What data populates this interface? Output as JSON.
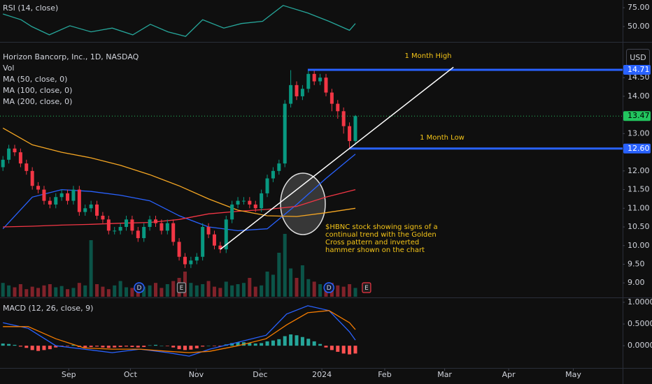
{
  "chart_data": [
    {
      "type": "line",
      "title": "RSI (14, close)",
      "xlim": [
        -0.5,
        105.5
      ],
      "ylim": [
        31.5,
        85.2
      ],
      "yticks": [
        {
          "value": 75,
          "label": "75.00"
        },
        {
          "value": 50,
          "label": "50.00"
        }
      ],
      "series": [
        {
          "color": "#26a69a",
          "x": [
            0,
            3.1,
            4.9,
            7.9,
            11.4,
            15,
            18.6,
            22.1,
            25.1,
            28.1,
            31.1,
            34,
            37.6,
            40.6,
            44.2,
            47.7,
            51.9,
            55.5,
            59,
            60
          ],
          "values": [
            66.7,
            59,
            50,
            39,
            51,
            43,
            48,
            39,
            53,
            43,
            37,
            59,
            48,
            54,
            57,
            78,
            68,
            57,
            45,
            54
          ]
        }
      ]
    },
    {
      "type": "candlestick",
      "title": "Horizon Bancorp, Inc., 1D, NASDAQ",
      "currency": "USD",
      "volume_label": "Vol",
      "xlim": [
        -0.5,
        105.5
      ],
      "ylim": [
        8.63,
        15.42
      ],
      "yticks": [
        {
          "value": 14.5,
          "label": "14.50"
        },
        {
          "value": 14,
          "label": "14.00"
        },
        {
          "value": 13,
          "label": "13.00"
        },
        {
          "value": 12,
          "label": "12.00"
        },
        {
          "value": 11.5,
          "label": "11.50"
        },
        {
          "value": 11,
          "label": "11.00"
        },
        {
          "value": 10.5,
          "label": "10.50"
        },
        {
          "value": 10,
          "label": "10.00"
        },
        {
          "value": 9.5,
          "label": "9.50"
        },
        {
          "value": 9,
          "label": "9.00"
        }
      ],
      "up_color": "#089981",
      "down_color": "#f23645",
      "open": [
        12.1,
        12.3,
        12.6,
        12.5,
        12.2,
        12.0,
        11.6,
        11.5,
        11.2,
        11.1,
        11.3,
        11.4,
        11.2,
        11.5,
        10.9,
        11.0,
        11.1,
        10.8,
        10.7,
        10.4,
        10.4,
        10.5,
        10.7,
        10.4,
        10.2,
        10.5,
        10.7,
        10.6,
        10.4,
        10.6,
        10.1,
        9.7,
        9.5,
        9.6,
        9.7,
        10.5,
        10.3,
        10.0,
        9.9,
        10.7,
        11.1,
        11.2,
        11.2,
        11.1,
        11.0,
        11.4,
        11.8,
        12.0,
        12.2,
        13.8,
        14.3,
        14.0,
        14.2,
        14.6,
        14.4,
        14.5,
        14.1,
        13.8,
        13.6,
        13.2,
        12.8
      ],
      "high": [
        12.4,
        12.7,
        12.7,
        12.6,
        12.3,
        12.1,
        11.7,
        11.6,
        11.3,
        11.4,
        11.5,
        11.5,
        11.6,
        11.6,
        11.1,
        11.2,
        11.2,
        10.9,
        10.8,
        10.5,
        10.6,
        10.8,
        10.8,
        10.5,
        10.6,
        10.8,
        10.8,
        10.7,
        10.7,
        10.7,
        10.2,
        9.8,
        9.7,
        9.8,
        10.6,
        10.6,
        10.4,
        10.1,
        10.8,
        11.2,
        11.3,
        11.3,
        11.3,
        11.2,
        11.5,
        11.9,
        12.1,
        12.3,
        13.9,
        14.7,
        14.4,
        14.3,
        14.7,
        14.7,
        14.6,
        14.6,
        14.2,
        13.9,
        13.7,
        13.3,
        13.5
      ],
      "low": [
        12.0,
        12.2,
        12.4,
        12.1,
        11.9,
        11.5,
        11.4,
        11.1,
        11.0,
        11.0,
        11.2,
        11.1,
        11.1,
        10.8,
        10.8,
        10.9,
        10.7,
        10.6,
        10.3,
        10.3,
        10.3,
        10.4,
        10.3,
        10.1,
        10.1,
        10.4,
        10.5,
        10.3,
        10.3,
        10.0,
        9.6,
        9.4,
        9.4,
        9.5,
        9.6,
        10.2,
        9.9,
        9.8,
        9.8,
        10.6,
        11.0,
        11.1,
        11.0,
        10.9,
        10.9,
        11.3,
        11.7,
        11.9,
        12.1,
        13.7,
        13.9,
        13.9,
        14.1,
        14.3,
        14.3,
        14.0,
        13.6,
        13.4,
        13.0,
        12.6,
        12.7
      ],
      "close": [
        12.3,
        12.6,
        12.5,
        12.2,
        12.0,
        11.6,
        11.5,
        11.2,
        11.1,
        11.3,
        11.4,
        11.2,
        11.5,
        10.9,
        11.0,
        11.1,
        10.8,
        10.7,
        10.4,
        10.4,
        10.5,
        10.7,
        10.4,
        10.2,
        10.5,
        10.7,
        10.6,
        10.4,
        10.6,
        10.1,
        9.7,
        9.5,
        9.6,
        9.7,
        10.5,
        10.3,
        10.0,
        9.9,
        10.7,
        11.1,
        11.2,
        11.2,
        11.1,
        11.0,
        11.4,
        11.8,
        12.0,
        12.2,
        13.8,
        14.3,
        14.0,
        14.2,
        14.6,
        14.4,
        14.5,
        14.1,
        13.8,
        13.6,
        13.2,
        12.8,
        13.47
      ],
      "volume": [
        22,
        18,
        15,
        20,
        12,
        16,
        14,
        18,
        20,
        15,
        17,
        12,
        14,
        22,
        18,
        90,
        20,
        16,
        12,
        18,
        25,
        15,
        14,
        20,
        16,
        18,
        22,
        14,
        20,
        25,
        30,
        40,
        22,
        18,
        20,
        25,
        16,
        14,
        24,
        18,
        20,
        22,
        30,
        16,
        18,
        40,
        35,
        70,
        100,
        45,
        30,
        50,
        28,
        24,
        20,
        18,
        22,
        18,
        16,
        20,
        14
      ],
      "moving_averages": [
        {
          "name": "MA (50, close, 0)",
          "color": "#2962ff",
          "x": [
            0,
            5,
            10,
            15,
            20,
            25,
            30,
            35,
            40,
            45,
            50,
            55,
            60
          ],
          "values": [
            10.45,
            11.3,
            11.5,
            11.45,
            11.35,
            11.2,
            10.8,
            10.5,
            10.4,
            10.45,
            11.1,
            11.8,
            12.45
          ]
        },
        {
          "name": "MA (100, close, 0)",
          "color": "#f23645",
          "x": [
            0,
            5,
            10,
            15,
            20,
            25,
            30,
            35,
            40,
            45,
            50,
            55,
            60
          ],
          "values": [
            10.5,
            10.52,
            10.55,
            10.57,
            10.6,
            10.62,
            10.7,
            10.85,
            10.92,
            10.97,
            11.05,
            11.3,
            11.5
          ]
        },
        {
          "name": "MA (200, close, 0)",
          "color": "#f5a623",
          "x": [
            0,
            5,
            10,
            15,
            20,
            25,
            30,
            35,
            40,
            45,
            50,
            55,
            60
          ],
          "values": [
            13.15,
            12.7,
            12.5,
            12.35,
            12.15,
            11.9,
            11.6,
            11.25,
            10.95,
            10.8,
            10.78,
            10.88,
            11.0
          ]
        }
      ],
      "levels": [
        {
          "label": "1 Month High",
          "value": 14.71,
          "value_label": "14.71",
          "x_start": 51.9,
          "color": "#2962ff"
        },
        {
          "label": "1 Month Low",
          "value": 12.6,
          "value_label": "12.60",
          "x_start": 59.0,
          "color": "#2962ff"
        }
      ],
      "last_price": {
        "value": 13.47,
        "label": "13.47",
        "color": "#22c55e"
      },
      "trend_line": {
        "x": [
          37,
          76.7
        ],
        "values": [
          9.9,
          14.78
        ]
      },
      "annotation": [
        "$HBNC stock showing signs of a",
        "continual trend with the Golden",
        "Cross pattern and inverted",
        "hammer shown on the chart"
      ],
      "events": [
        {
          "label": "D",
          "x": 23.2,
          "color": "#2962ff"
        },
        {
          "label": "E",
          "x": 30.4,
          "color": "#9598a1"
        },
        {
          "label": "D",
          "x": 55.5,
          "color": "#2962ff"
        },
        {
          "label": "E",
          "x": 61.9,
          "color": "#f23645"
        }
      ]
    },
    {
      "type": "macd",
      "title": "MACD (12, 26, close, 9)",
      "xlim": [
        -0.5,
        105.5
      ],
      "ylim": [
        -0.48,
        1.08
      ],
      "yticks": [
        {
          "value": 1,
          "label": "1.0000"
        },
        {
          "value": 0.5,
          "label": "0.5000"
        },
        {
          "value": 0,
          "label": "0.0000"
        }
      ],
      "xticks": [
        {
          "value": 11.2,
          "label": "Sep"
        },
        {
          "value": 21.7,
          "label": "Oct"
        },
        {
          "value": 32.9,
          "label": "Nov"
        },
        {
          "value": 43.8,
          "label": "Dec"
        },
        {
          "value": 54.3,
          "label": "2024"
        },
        {
          "value": 65.0,
          "label": "Feb"
        },
        {
          "value": 75.2,
          "label": "Mar"
        },
        {
          "value": 86.1,
          "label": "Apr"
        },
        {
          "value": 97.1,
          "label": "May"
        }
      ],
      "histogram": [
        0.05,
        0.04,
        0.02,
        -0.02,
        -0.05,
        -0.1,
        -0.12,
        -0.1,
        -0.08,
        -0.04,
        -0.02,
        -0.01,
        0.02,
        -0.03,
        -0.04,
        -0.03,
        -0.02,
        -0.04,
        -0.05,
        -0.04,
        -0.03,
        -0.02,
        -0.03,
        -0.04,
        -0.03,
        0.01,
        0.02,
        0.0,
        -0.01,
        -0.04,
        -0.08,
        -0.1,
        -0.09,
        -0.06,
        -0.02,
        0.0,
        -0.01,
        -0.02,
        0.03,
        0.06,
        0.08,
        0.08,
        0.06,
        0.05,
        0.06,
        0.1,
        0.12,
        0.15,
        0.22,
        0.26,
        0.24,
        0.2,
        0.16,
        0.1,
        0.04,
        -0.04,
        -0.1,
        -0.14,
        -0.18,
        -0.2,
        -0.18
      ],
      "hist_up_color": "#26a69a",
      "hist_down_color": "#ff5252",
      "series": [
        {
          "color": "#2962ff",
          "x": [
            0,
            4.3,
            9,
            13.8,
            18.6,
            23.3,
            28.1,
            31.7,
            35.2,
            40,
            44.8,
            48.3,
            51.9,
            55.5,
            59,
            60
          ],
          "values": [
            0.53,
            0.4,
            0,
            -0.08,
            -0.16,
            -0.08,
            -0.16,
            -0.24,
            -0.08,
            0.08,
            0.24,
            0.73,
            0.92,
            0.81,
            0.32,
            0.13
          ]
        },
        {
          "color": "#f57c00",
          "x": [
            0,
            4.3,
            9,
            13.8,
            18.6,
            23.3,
            28.1,
            31.7,
            35.2,
            40,
            44.8,
            48.3,
            51.9,
            55.5,
            59,
            60
          ],
          "values": [
            0.44,
            0.44,
            0.16,
            -0.05,
            -0.08,
            -0.08,
            -0.13,
            -0.16,
            -0.13,
            0,
            0.16,
            0.48,
            0.76,
            0.81,
            0.53,
            0.37
          ]
        }
      ]
    }
  ]
}
